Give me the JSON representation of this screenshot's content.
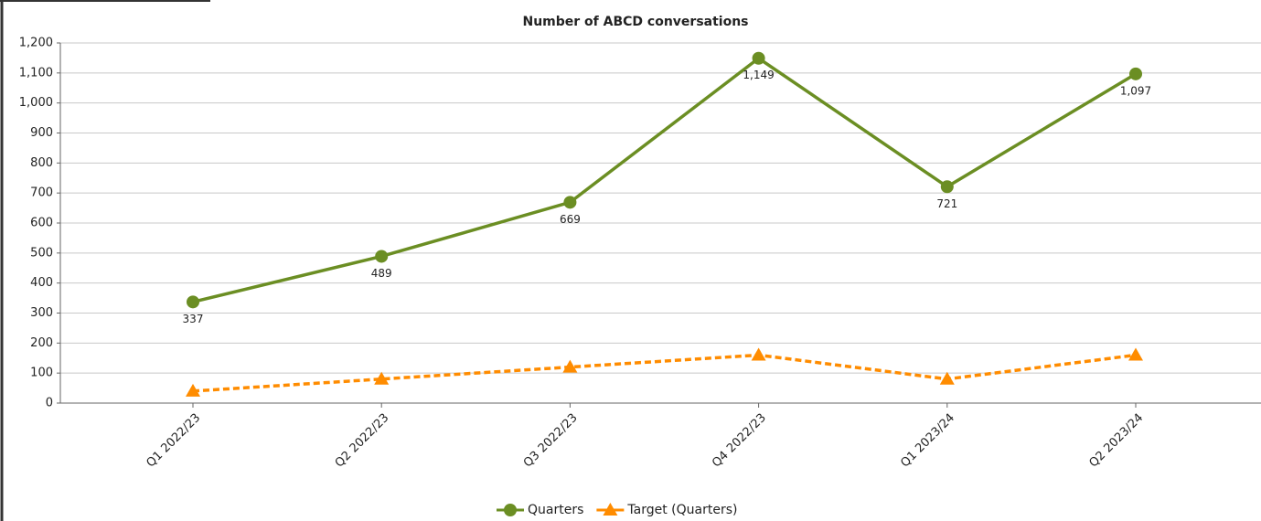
{
  "chart_data": {
    "type": "line",
    "title": "Number of ABCD conversations",
    "categories": [
      "Q1 2022/23",
      "Q2 2022/23",
      "Q3 2022/23",
      "Q4 2022/23",
      "Q1 2023/24",
      "Q2 2023/24"
    ],
    "series": [
      {
        "name": "Quarters",
        "color": "#6b8e23",
        "marker": "circle",
        "dashed": false,
        "values": [
          337,
          489,
          669,
          1149,
          721,
          1097
        ],
        "value_labels": [
          "337",
          "489",
          "669",
          "1,149",
          "721",
          "1,097"
        ]
      },
      {
        "name": "Target (Quarters)",
        "color": "#ff8c00",
        "marker": "triangle",
        "dashed": true,
        "values": [
          40,
          80,
          120,
          160,
          80,
          160
        ]
      }
    ],
    "ylim": [
      0,
      1200
    ],
    "yticks": [
      0,
      100,
      200,
      300,
      400,
      500,
      600,
      700,
      800,
      900,
      {
        "value": 1000,
        "label": "1,000"
      },
      {
        "value": 1100,
        "label": "1,100"
      },
      {
        "value": 1200,
        "label": "1,200"
      }
    ],
    "grid": true,
    "legend": "bottom"
  }
}
